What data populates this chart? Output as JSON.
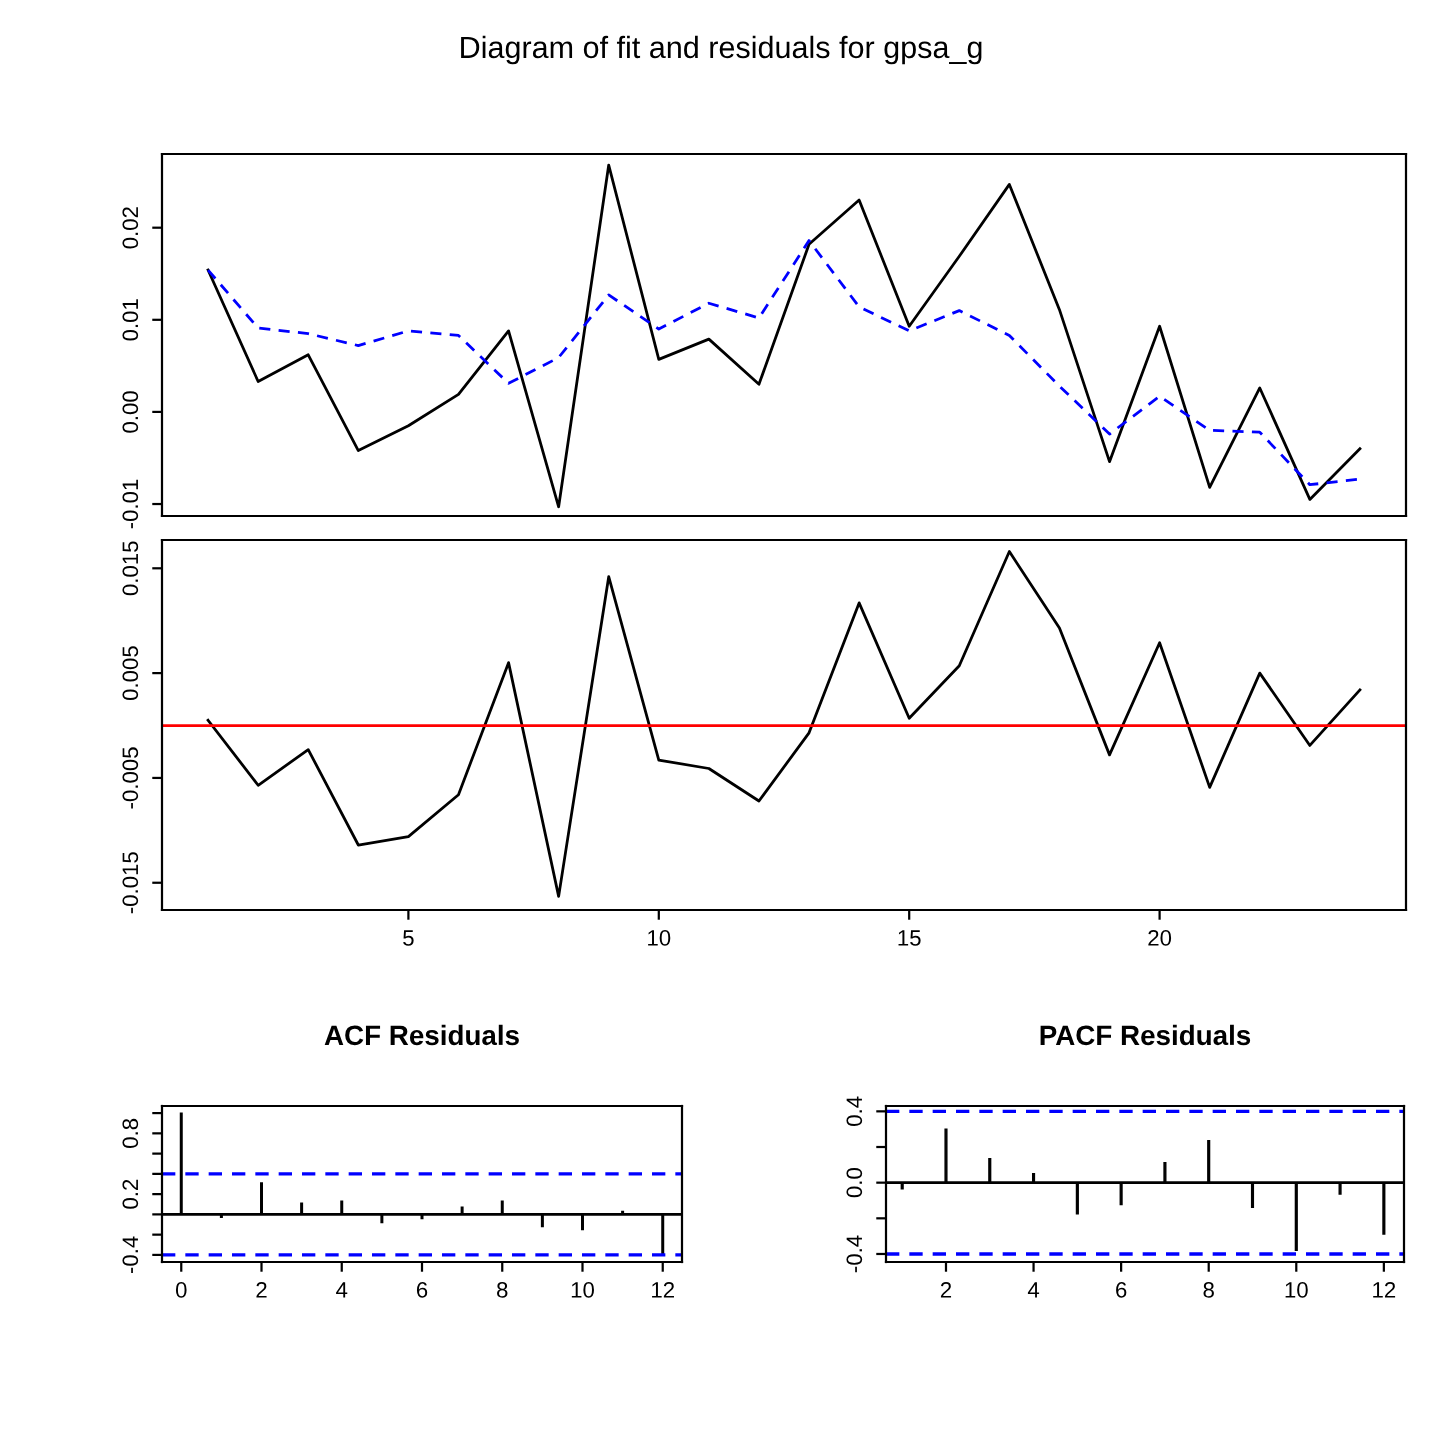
{
  "chart_data": [
    {
      "type": "line",
      "title": "Diagram of fit and residuals for gpsa_g",
      "x": [
        1,
        2,
        3,
        4,
        5,
        6,
        7,
        8,
        9,
        10,
        11,
        12,
        13,
        14,
        15,
        16,
        17,
        18,
        19,
        20,
        21,
        22,
        23,
        24
      ],
      "xlim": [
        0.08,
        24.92
      ],
      "ylim": [
        -0.0113,
        0.028
      ],
      "yticks": [
        {
          "value": -0.01,
          "label": "-0.01"
        },
        {
          "value": 0,
          "label": "0.00"
        },
        {
          "value": 0.01,
          "label": "0.01"
        },
        {
          "value": 0.02,
          "label": "0.02"
        }
      ],
      "tick_labels": "y",
      "grid": false,
      "series": [
        {
          "color": "#000000",
          "line_style": "solid",
          "values": [
            0.0154,
            0.0033,
            0.0062,
            -0.0042,
            -0.0015,
            0.0019,
            0.0088,
            -0.0103,
            0.0268,
            0.0057,
            0.0079,
            0.003,
            0.0182,
            0.023,
            0.0093,
            0.0169,
            0.0247,
            0.0111,
            -0.0054,
            0.0093,
            -0.0082,
            0.0026,
            -0.0095,
            -0.004
          ]
        },
        {
          "color": "#0000ff",
          "line_style": "dashed",
          "values": [
            0.0154,
            0.0091,
            0.0085,
            0.0072,
            0.0088,
            0.0083,
            0.0031,
            0.0059,
            0.0127,
            0.009,
            0.0118,
            0.0102,
            0.0186,
            0.0114,
            0.0088,
            0.011,
            0.0083,
            0.0028,
            -0.0024,
            0.0017,
            -0.002,
            -0.0022,
            -0.0079,
            -0.0073
          ]
        }
      ]
    },
    {
      "type": "line",
      "x": [
        1,
        2,
        3,
        4,
        5,
        6,
        7,
        8,
        9,
        10,
        11,
        12,
        13,
        14,
        15,
        16,
        17,
        18,
        19,
        20,
        21,
        22,
        23,
        24
      ],
      "xlim": [
        0.08,
        24.92
      ],
      "xticks": [
        5,
        10,
        15,
        20
      ],
      "ylim": [
        -0.0176,
        0.0177
      ],
      "yticks": [
        -0.015,
        -0.005,
        0.005,
        0.015
      ],
      "grid": false,
      "series": [
        {
          "color": "#000000",
          "line_style": "solid",
          "values": [
            0.0005,
            -0.0057,
            -0.0023,
            -0.0114,
            -0.0106,
            -0.0066,
            0.006,
            -0.0163,
            0.0142,
            -0.0033,
            -0.0041,
            -0.0072,
            -0.0007,
            0.0117,
            0.0007,
            0.0057,
            0.0166,
            0.0093,
            -0.0028,
            0.0079,
            -0.0059,
            0.005,
            -0.0019,
            0.0034
          ]
        }
      ],
      "ref_lines": [
        {
          "axis": "y",
          "value": 0,
          "color": "#ff0000",
          "line_style": "solid"
        }
      ]
    },
    {
      "type": "bar",
      "title": "ACF Residuals",
      "x": [
        0,
        1,
        2,
        3,
        4,
        5,
        6,
        7,
        8,
        9,
        10,
        11,
        12
      ],
      "xlim": [
        -0.48,
        12.48
      ],
      "xticks": [
        0,
        2,
        4,
        6,
        8,
        10,
        12
      ],
      "ylim": [
        -0.47,
        1.07
      ],
      "yticks": [
        {
          "value": -0.4,
          "label": "-0.4"
        },
        {
          "value": -0.2,
          "label": null
        },
        {
          "value": 0,
          "label": null
        },
        {
          "value": 0.2,
          "label": "0.2"
        },
        {
          "value": 0.4,
          "label": null
        },
        {
          "value": 0.6,
          "label": null
        },
        {
          "value": 0.8,
          "label": "0.8"
        },
        {
          "value": 1.0,
          "label": null
        }
      ],
      "grid": false,
      "color": "#000000",
      "values": [
        1.0,
        -0.03,
        0.31,
        0.11,
        0.13,
        -0.08,
        -0.04,
        0.07,
        0.13,
        -0.12,
        -0.15,
        0.03,
        -0.4
      ],
      "ref_lines": [
        {
          "axis": "y",
          "value": 0,
          "color": "#000000",
          "line_style": "solid"
        },
        {
          "axis": "y",
          "value": 0.4,
          "color": "#0000ff",
          "line_style": "dashed"
        },
        {
          "axis": "y",
          "value": -0.4,
          "color": "#0000ff",
          "line_style": "dashed"
        }
      ]
    },
    {
      "type": "bar",
      "title": "PACF Residuals",
      "x": [
        1,
        2,
        3,
        4,
        5,
        6,
        7,
        8,
        9,
        10,
        11,
        12
      ],
      "xlim": [
        0.63,
        12.46
      ],
      "xticks": [
        2,
        4,
        6,
        8,
        10,
        12
      ],
      "ylim": [
        -0.445,
        0.43
      ],
      "yticks": [
        {
          "value": -0.4,
          "label": "-0.4"
        },
        {
          "value": -0.2,
          "label": null
        },
        {
          "value": 0,
          "label": "0.0"
        },
        {
          "value": 0.2,
          "label": null
        },
        {
          "value": 0.4,
          "label": "0.4"
        }
      ],
      "grid": false,
      "color": "#000000",
      "values": [
        -0.034,
        0.3,
        0.135,
        0.05,
        -0.175,
        -0.123,
        0.112,
        0.235,
        -0.138,
        -0.38,
        -0.064,
        -0.288
      ],
      "ref_lines": [
        {
          "axis": "y",
          "value": 0,
          "color": "#000000",
          "line_style": "solid"
        },
        {
          "axis": "y",
          "value": 0.4,
          "color": "#0000ff",
          "line_style": "dashed"
        },
        {
          "axis": "y",
          "value": -0.4,
          "color": "#0000ff",
          "line_style": "dashed"
        }
      ]
    }
  ]
}
